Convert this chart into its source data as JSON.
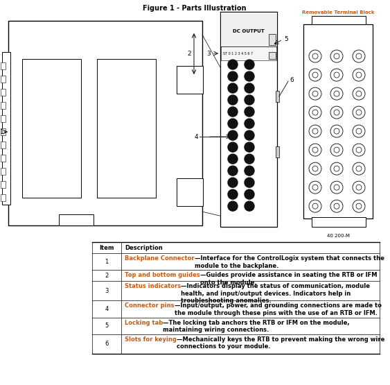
{
  "title": "Figure 1 - Parts Illustration",
  "title_fontsize": 7,
  "bg_color": "#ffffff",
  "orange_color": "#c55a11",
  "table_header": [
    "Item",
    "Description"
  ],
  "table_rows": [
    [
      "1",
      "Backplane Connector—Interface for the ControlLogix system that connects the module to the backplane."
    ],
    [
      "2",
      "Top and bottom guides—Guides provide assistance in seating the RTB or IFM onto the module."
    ],
    [
      "3",
      "Status indicators—Indicators display the status of communication, module health, and input/output devices. Indicators help in troubleshooting anomalies."
    ],
    [
      "4",
      "Connector pins—Input/output, power, and grounding connections are made to the module through these pins with the use of an RTB or IFM."
    ],
    [
      "5",
      "Locking tab—The locking tab anchors the RTB or IFM on the module, maintaining wiring connections."
    ],
    [
      "6",
      "Slots for keying—Mechanically keys the RTB to prevent making the wrong wire connections to your module."
    ]
  ],
  "bold_terms": [
    "Backplane Connector",
    "Top and bottom guides",
    "Status indicators",
    "Connector pins",
    "Locking tab",
    "Slots for keying"
  ],
  "table_fontsize": 6.0,
  "label_fontsize": 6.5,
  "fig_note": "40 200-M"
}
